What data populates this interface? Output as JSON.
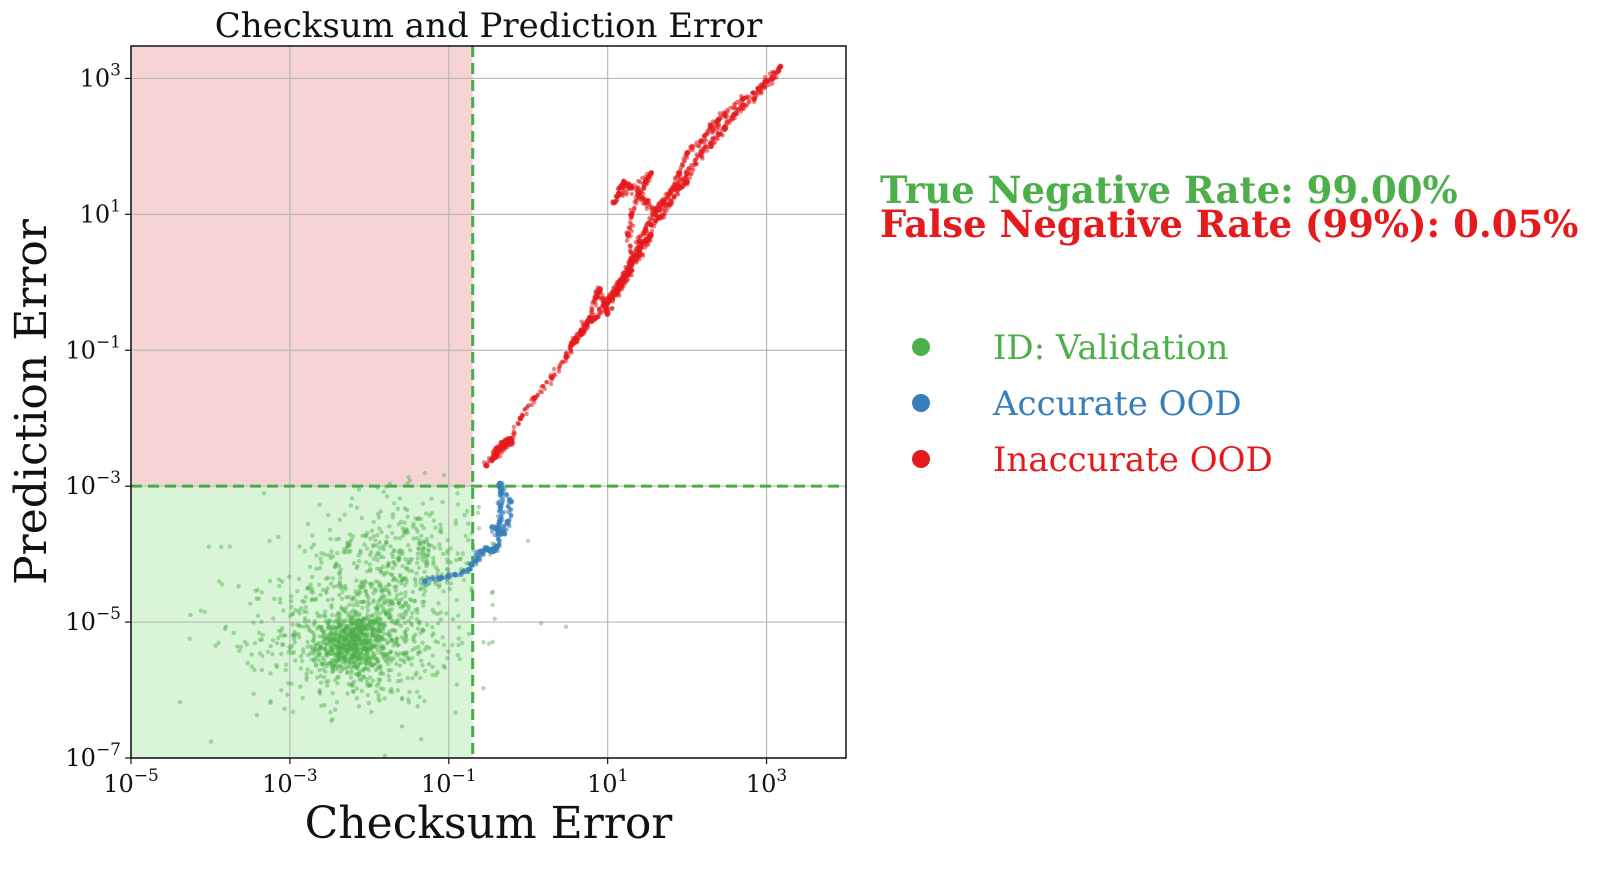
{
  "chart_data": {
    "type": "scatter",
    "title": "Checksum and Prediction Error",
    "xlabel": "Checksum Error",
    "ylabel": "Prediction Error",
    "xscale": "log",
    "yscale": "log",
    "xlim": [
      1e-05,
      10000
    ],
    "ylim": [
      1e-07,
      3000
    ],
    "x_ticks": [
      {
        "value": 1e-05,
        "base": "10",
        "exp": "−5"
      },
      {
        "value": 0.001,
        "base": "10",
        "exp": "−3"
      },
      {
        "value": 0.1,
        "base": "10",
        "exp": "−1"
      },
      {
        "value": 10,
        "base": "10",
        "exp": "1"
      },
      {
        "value": 1000,
        "base": "10",
        "exp": "3"
      }
    ],
    "y_ticks": [
      {
        "value": 1e-07,
        "base": "10",
        "exp": "−7"
      },
      {
        "value": 1e-05,
        "base": "10",
        "exp": "−5"
      },
      {
        "value": 0.001,
        "base": "10",
        "exp": "−3"
      },
      {
        "value": 0.1,
        "base": "10",
        "exp": "−1"
      },
      {
        "value": 10,
        "base": "10",
        "exp": "1"
      },
      {
        "value": 1000,
        "base": "10",
        "exp": "3"
      }
    ],
    "grid": true,
    "thresholds": {
      "checksum": 0.2,
      "prediction": 0.001
    },
    "regions": [
      {
        "name": "flagged-region",
        "color": "#f7d4d4",
        "x": [
          1e-05,
          0.2
        ],
        "y": [
          0.001,
          3000
        ]
      },
      {
        "name": "accepted-region",
        "color": "#d8f5d8",
        "x": [
          1e-05,
          0.2
        ],
        "y": [
          1e-07,
          0.001
        ]
      }
    ],
    "threshold_color": "#4aab4a",
    "series": [
      {
        "name": "ID: Validation",
        "color": "#4daf4a",
        "clusters": [
          {
            "cx": 0.006,
            "cy": 5e-06,
            "sx": 0.22,
            "sy": 0.22,
            "n": 520
          },
          {
            "cx": 0.008,
            "cy": 6e-06,
            "sx": 0.55,
            "sy": 0.5,
            "n": 650
          },
          {
            "cx": 0.025,
            "cy": 0.0001,
            "sx": 0.5,
            "sy": 0.45,
            "n": 350
          },
          {
            "cx": 0.004,
            "cy": 1e-05,
            "sx": 1.0,
            "sy": 0.8,
            "n": 140
          }
        ]
      },
      {
        "name": "Accurate OOD",
        "color": "#377eb8",
        "points": [
          [
            0.05,
            4e-05
          ],
          [
            0.08,
            4.5e-05
          ],
          [
            0.12,
            5e-05
          ],
          [
            0.18,
            6e-05
          ],
          [
            0.22,
            8e-05
          ],
          [
            0.25,
            0.00011
          ],
          [
            0.3,
            0.00012
          ],
          [
            0.36,
            0.00011
          ],
          [
            0.4,
            0.00013
          ],
          [
            0.42,
            0.0002
          ],
          [
            0.44,
            0.0003
          ],
          [
            0.45,
            0.0005
          ],
          [
            0.45,
            0.0008
          ],
          [
            0.44,
            0.0011
          ],
          [
            0.6,
            0.0006
          ],
          [
            0.55,
            0.0003
          ],
          [
            0.5,
            0.0002
          ],
          [
            0.35,
            0.00025
          ]
        ]
      },
      {
        "name": "Inaccurate OOD",
        "color": "#e41a1c",
        "points": [
          [
            0.3,
            0.002
          ],
          [
            0.4,
            0.003
          ],
          [
            0.5,
            0.004
          ],
          [
            0.6,
            0.005
          ],
          [
            0.5,
            0.0045
          ],
          [
            0.4,
            0.0035
          ],
          [
            0.35,
            0.0025
          ],
          [
            0.6,
            0.0042
          ],
          [
            0.8,
            0.01
          ],
          [
            1.2,
            0.02
          ],
          [
            2,
            0.04
          ],
          [
            3,
            0.08
          ],
          [
            3.5,
            0.12
          ],
          [
            4,
            0.15
          ],
          [
            5,
            0.2
          ],
          [
            6,
            0.3
          ],
          [
            7,
            0.6
          ],
          [
            8,
            0.8
          ],
          [
            9,
            0.5
          ],
          [
            10,
            0.35
          ],
          [
            12,
            0.7
          ],
          [
            15,
            1
          ],
          [
            20,
            1.5
          ],
          [
            15,
            0.9
          ],
          [
            10,
            0.5
          ],
          [
            20,
            2
          ],
          [
            25,
            3
          ],
          [
            30,
            4
          ],
          [
            35,
            5
          ],
          [
            25,
            2.5
          ],
          [
            20,
            1.8
          ],
          [
            18,
            5
          ],
          [
            20,
            10
          ],
          [
            25,
            20
          ],
          [
            30,
            30
          ],
          [
            35,
            40
          ],
          [
            12,
            15
          ],
          [
            14,
            20
          ],
          [
            15,
            25
          ],
          [
            16,
            30
          ],
          [
            20,
            25
          ],
          [
            25,
            20
          ],
          [
            30,
            15
          ],
          [
            40,
            10
          ],
          [
            60,
            20
          ],
          [
            80,
            40
          ],
          [
            100,
            80
          ],
          [
            150,
            120
          ],
          [
            200,
            200
          ],
          [
            300,
            300
          ],
          [
            500,
            500
          ],
          [
            800,
            700
          ],
          [
            1000,
            900
          ],
          [
            1500,
            1500
          ],
          [
            1200,
            1000
          ],
          [
            700,
            500
          ],
          [
            400,
            300
          ],
          [
            250,
            150
          ],
          [
            150,
            80
          ],
          [
            100,
            40
          ],
          [
            70,
            25
          ],
          [
            50,
            15
          ],
          [
            40,
            12
          ],
          [
            30,
            6
          ],
          [
            25,
            4
          ],
          [
            20,
            2.2
          ],
          [
            18,
            1.5
          ],
          [
            16,
            1.2
          ],
          [
            14,
            1
          ],
          [
            13,
            0.7
          ],
          [
            11,
            0.6
          ],
          [
            9,
            0.45
          ],
          [
            7,
            0.3
          ],
          [
            5.5,
            0.25
          ],
          [
            4.5,
            0.18
          ],
          [
            3.8,
            0.13
          ],
          [
            200,
            100
          ],
          [
            250,
            250
          ],
          [
            100,
            30
          ],
          [
            80,
            25
          ],
          [
            60,
            14
          ],
          [
            45,
            9
          ],
          [
            35,
            7
          ],
          [
            300,
            180
          ],
          [
            500,
            400
          ]
        ]
      }
    ],
    "annotations": [
      {
        "text": "True Negative Rate: 99.00%",
        "color": "#4daf4a"
      },
      {
        "text": "False Negative Rate (99%): 0.05%",
        "color": "#e41a1c"
      }
    ],
    "legend": {
      "position": "right",
      "entries": [
        {
          "label": "ID: Validation",
          "color": "#4daf4a"
        },
        {
          "label": "Accurate OOD",
          "color": "#377eb8"
        },
        {
          "label": "Inaccurate OOD",
          "color": "#e41a1c"
        }
      ]
    }
  }
}
